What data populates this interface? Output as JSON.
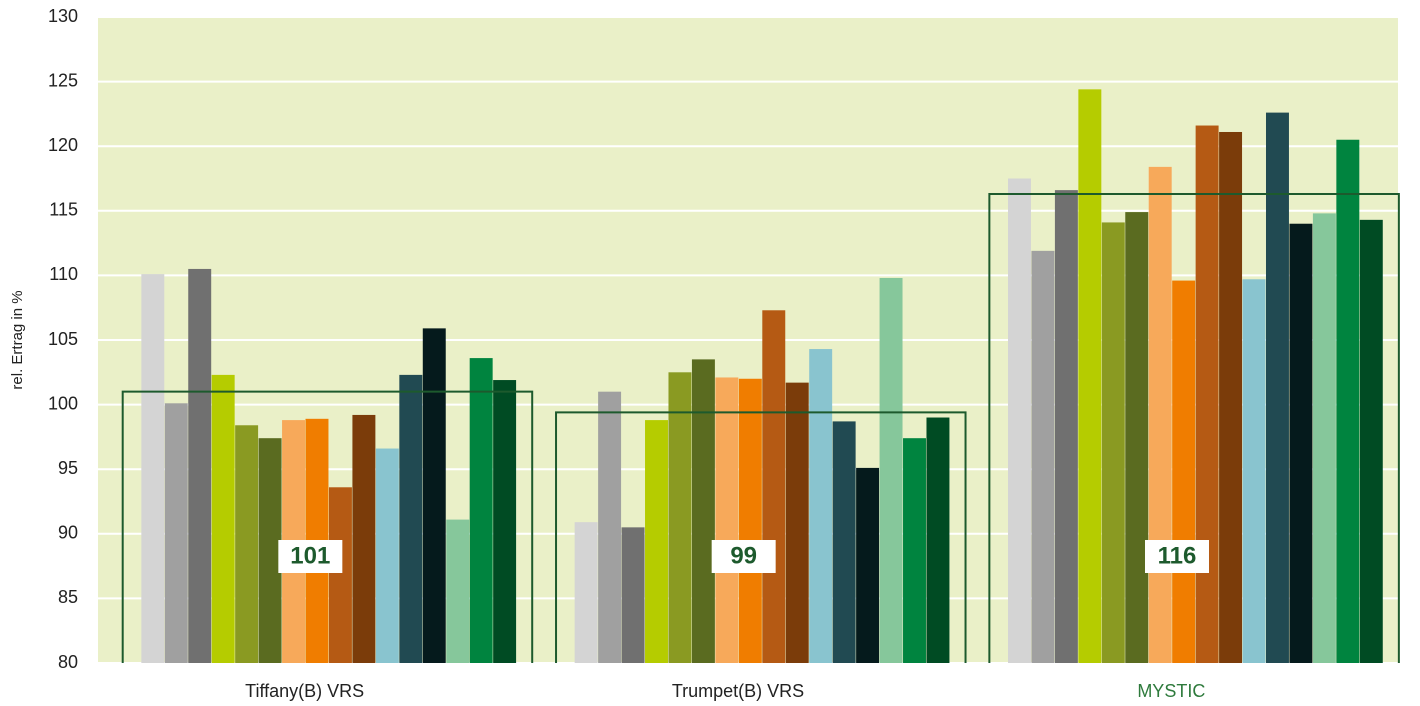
{
  "chart_data": {
    "type": "bar",
    "y_label": "rel. Ertrag in %",
    "categories": [
      "Tiffany(B) VRS",
      "Trumpet(B) VRS",
      "MYSTIC"
    ],
    "category_label_colors": [
      "#222222",
      "#222222",
      "#2e7a3c"
    ],
    "series": [
      {
        "color": "#d4d4d4",
        "values": [
          110.1,
          90.9,
          117.5
        ]
      },
      {
        "color": "#a0a0a0",
        "values": [
          100.1,
          101.0,
          111.9
        ]
      },
      {
        "color": "#707070",
        "values": [
          110.5,
          90.5,
          116.6
        ]
      },
      {
        "color": "#b5cc00",
        "values": [
          102.3,
          98.8,
          124.4
        ]
      },
      {
        "color": "#8a9a22",
        "values": [
          98.4,
          102.5,
          114.1
        ]
      },
      {
        "color": "#5a6b20",
        "values": [
          97.4,
          103.5,
          114.9
        ]
      },
      {
        "color": "#f7a95a",
        "values": [
          98.8,
          102.1,
          118.4
        ]
      },
      {
        "color": "#f07d00",
        "values": [
          98.9,
          102.0,
          109.6
        ]
      },
      {
        "color": "#b55a14",
        "values": [
          93.6,
          107.3,
          121.6
        ]
      },
      {
        "color": "#7b3c0a",
        "values": [
          99.2,
          101.7,
          121.1
        ]
      },
      {
        "color": "#89c4cf",
        "values": [
          96.6,
          104.3,
          109.7
        ]
      },
      {
        "color": "#214a52",
        "values": [
          102.3,
          98.7,
          122.6
        ]
      },
      {
        "color": "#051a1c",
        "values": [
          105.9,
          95.1,
          114.0
        ]
      },
      {
        "color": "#86c79b",
        "values": [
          91.1,
          109.8,
          114.8
        ]
      },
      {
        "color": "#00843f",
        "values": [
          103.6,
          97.4,
          120.5
        ]
      },
      {
        "color": "#004b23",
        "values": [
          101.9,
          99.0,
          114.3
        ]
      }
    ],
    "averages": {
      "color": "#1d5a2d",
      "values": [
        101.0,
        99.4,
        116.3
      ],
      "value_labels": [
        "101",
        "99",
        "116"
      ]
    },
    "ylim": [
      80,
      130
    ],
    "yticks": [
      80,
      85,
      90,
      95,
      100,
      105,
      110,
      115,
      120,
      125,
      130
    ],
    "grid": true,
    "plot_background": "#eaf0c8"
  }
}
